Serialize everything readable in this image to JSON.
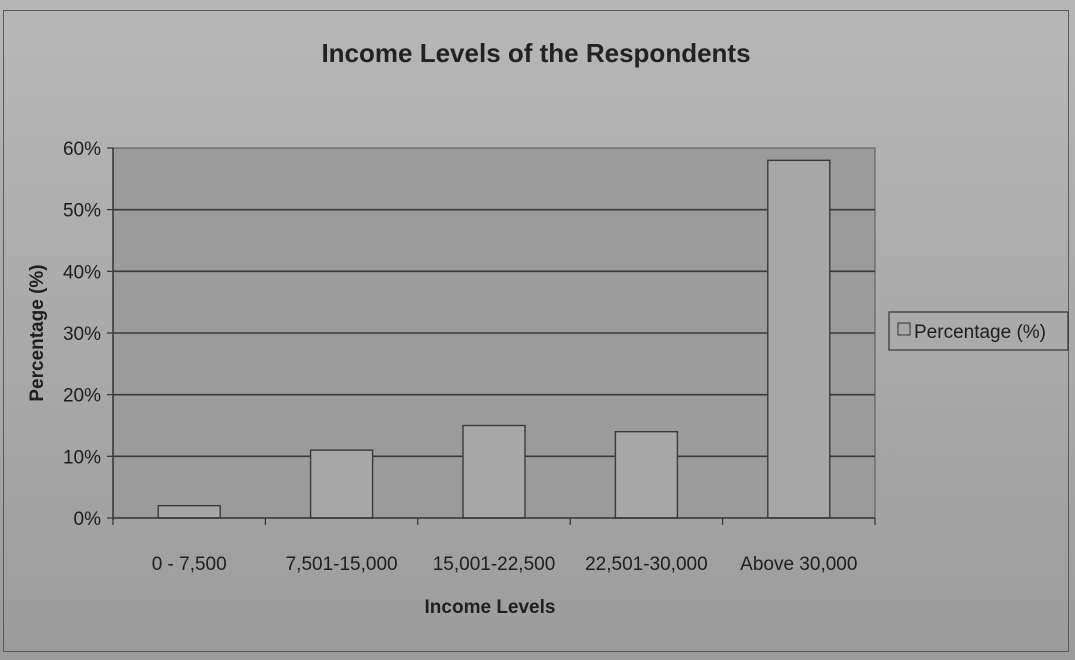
{
  "chart_data": {
    "type": "bar",
    "title": "Income Levels of the Respondents",
    "xlabel": "Income Levels",
    "ylabel": "Percentage (%)",
    "categories": [
      "0 - 7,500",
      "7,501-15,000",
      "15,001-22,500",
      "22,501-30,000",
      "Above 30,000"
    ],
    "series": [
      {
        "name": "Percentage (%)",
        "values": [
          2,
          11,
          15,
          14,
          58
        ]
      }
    ],
    "ylim": [
      0,
      60
    ],
    "yticks": [
      "0%",
      "10%",
      "20%",
      "30%",
      "40%",
      "50%",
      "60%"
    ],
    "grid": true,
    "legend_position": "right",
    "colors": {
      "plot_background": "#9b9b9b",
      "bar_fill": "#a7a7a7",
      "bar_stroke": "#3a3a3a",
      "gridline": "#3a3a3a"
    }
  }
}
